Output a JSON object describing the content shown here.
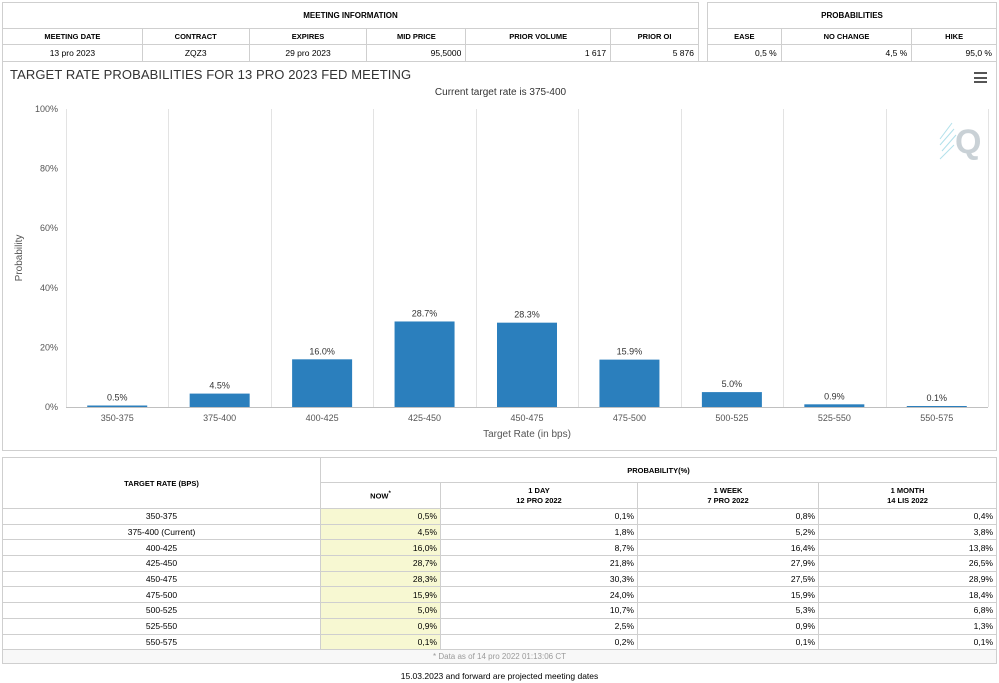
{
  "meeting_info": {
    "header": "MEETING INFORMATION",
    "columns": [
      "MEETING DATE",
      "CONTRACT",
      "EXPIRES",
      "MID PRICE",
      "PRIOR VOLUME",
      "PRIOR OI"
    ],
    "values": [
      "13 pro 2023",
      "ZQZ3",
      "29 pro 2023",
      "95,5000",
      "1 617",
      "5 876"
    ]
  },
  "probabilities": {
    "header": "PROBABILITIES",
    "columns": [
      "EASE",
      "NO CHANGE",
      "HIKE"
    ],
    "values": [
      "0,5 %",
      "4,5 %",
      "95,0 %"
    ]
  },
  "chart_data": {
    "type": "bar",
    "title": "TARGET RATE PROBABILITIES FOR 13 PRO 2023 FED MEETING",
    "subtitle": "Current target rate is 375-400",
    "xlabel": "Target Rate (in bps)",
    "ylabel": "Probability",
    "categories": [
      "350-375",
      "375-400",
      "400-425",
      "425-450",
      "450-475",
      "475-500",
      "500-525",
      "525-550",
      "550-575"
    ],
    "values": [
      0.5,
      4.5,
      16.0,
      28.7,
      28.3,
      15.9,
      5.0,
      0.9,
      0.1
    ],
    "data_labels": [
      "0.5%",
      "4.5%",
      "16.0%",
      "28.7%",
      "28.3%",
      "15.9%",
      "5.0%",
      "0.9%",
      "0.1%"
    ],
    "ylim": [
      0,
      100
    ],
    "yticks": [
      0,
      20,
      40,
      60,
      80,
      100
    ],
    "ytick_labels": [
      "0%",
      "20%",
      "40%",
      "60%",
      "80%",
      "100%"
    ],
    "grid": "vertical",
    "bar_color": "#2b7fbd"
  },
  "rate_table": {
    "target_rate_header": "TARGET RATE (BPS)",
    "probability_header": "PROBABILITY(%)",
    "now_header": "NOW",
    "now_marker": "*",
    "day_header": "1 DAY",
    "day_date": "12 PRO 2022",
    "week_header": "1 WEEK",
    "week_date": "7 PRO 2022",
    "month_header": "1 MONTH",
    "month_date": "14 LIS 2022",
    "rows": [
      {
        "rate": "350-375",
        "now": "0,5%",
        "day": "0,1%",
        "week": "0,8%",
        "month": "0,4%"
      },
      {
        "rate": "375-400 (Current)",
        "now": "4,5%",
        "day": "1,8%",
        "week": "5,2%",
        "month": "3,8%"
      },
      {
        "rate": "400-425",
        "now": "16,0%",
        "day": "8,7%",
        "week": "16,4%",
        "month": "13,8%"
      },
      {
        "rate": "425-450",
        "now": "28,7%",
        "day": "21,8%",
        "week": "27,9%",
        "month": "26,5%"
      },
      {
        "rate": "450-475",
        "now": "28,3%",
        "day": "30,3%",
        "week": "27,5%",
        "month": "28,9%"
      },
      {
        "rate": "475-500",
        "now": "15,9%",
        "day": "24,0%",
        "week": "15,9%",
        "month": "18,4%"
      },
      {
        "rate": "500-525",
        "now": "5,0%",
        "day": "10,7%",
        "week": "5,3%",
        "month": "6,8%"
      },
      {
        "rate": "525-550",
        "now": "0,9%",
        "day": "2,5%",
        "week": "0,9%",
        "month": "1,3%"
      },
      {
        "rate": "550-575",
        "now": "0,1%",
        "day": "0,2%",
        "week": "0,1%",
        "month": "0,1%"
      }
    ],
    "data_as_of": "* Data as of 14 pro 2022 01:13:06 CT"
  },
  "footnote": "15.03.2023 and forward are projected meeting dates",
  "icons": {
    "menu": "hamburger-menu-icon",
    "watermark": "quikstrike-q-logo"
  }
}
